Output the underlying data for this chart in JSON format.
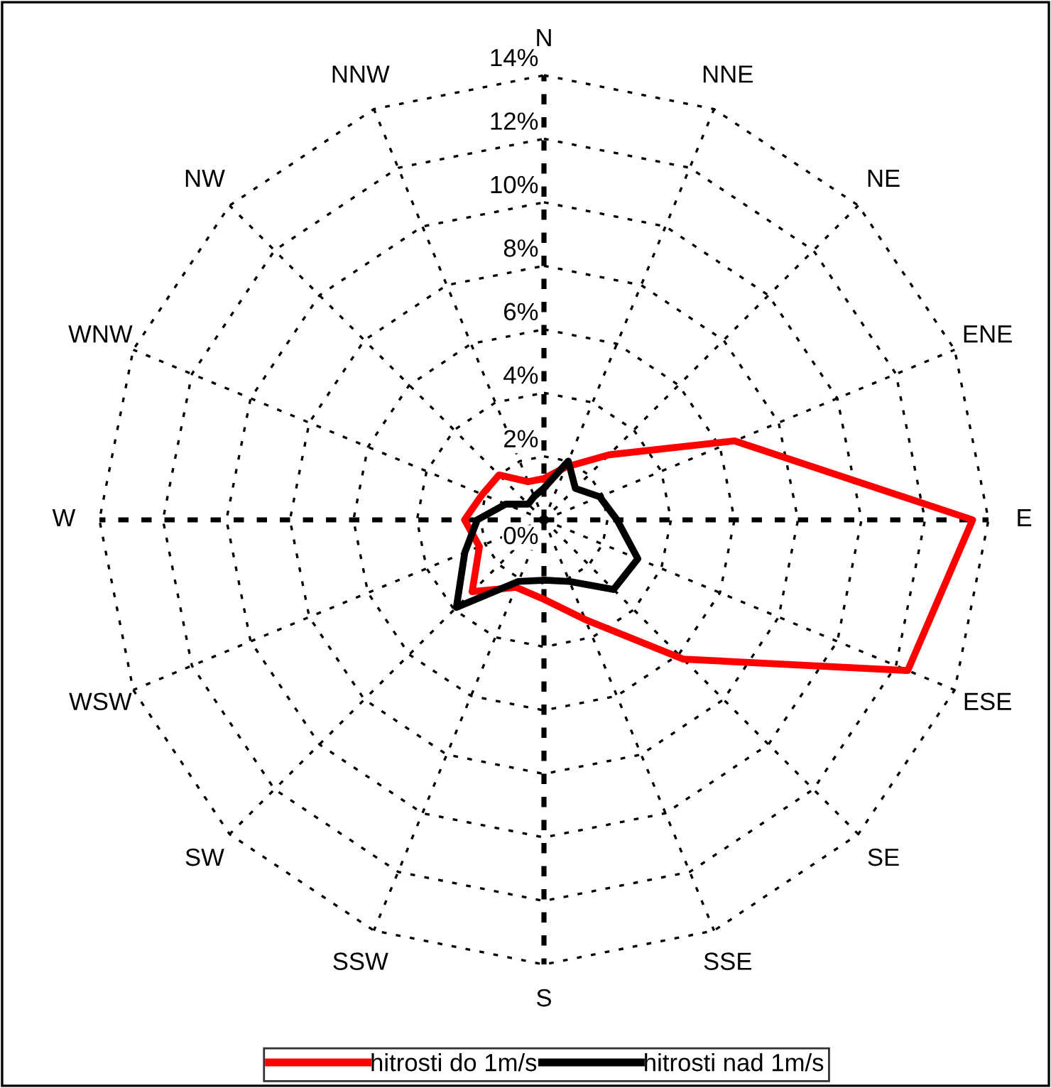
{
  "chart_data": {
    "type": "radar",
    "categories": [
      "N",
      "NNE",
      "NE",
      "ENE",
      "E",
      "ESE",
      "SE",
      "SSE",
      "S",
      "SSW",
      "SW",
      "WSW",
      "W",
      "WNW",
      "NW",
      "NNW"
    ],
    "ylim": [
      0,
      14
    ],
    "yticks": [
      {
        "value": 0,
        "label": "0%"
      },
      {
        "value": 2,
        "label": "2%"
      },
      {
        "value": 4,
        "label": "4%"
      },
      {
        "value": 6,
        "label": "6%"
      },
      {
        "value": 8,
        "label": "8%"
      },
      {
        "value": 10,
        "label": "10%"
      },
      {
        "value": 12,
        "label": "12%"
      },
      {
        "value": 14,
        "label": "14%"
      }
    ],
    "grid": true,
    "legend": "bottom",
    "line_style": "solid",
    "series": [
      {
        "name": "hitrosti do 1m/s",
        "color": "#ff0000",
        "values": [
          1.3,
          1.8,
          2.9,
          6.5,
          13.5,
          12.4,
          6.2,
          3.4,
          2.5,
          2.3,
          3.2,
          2.2,
          2.5,
          2.1,
          2.0,
          1.3
        ]
      },
      {
        "name": "hitrosti nad 1m/s",
        "color": "#000000",
        "values": [
          1.0,
          2.0,
          1.4,
          1.9,
          2.3,
          3.2,
          3.1,
          2.1,
          1.9,
          2.1,
          3.9,
          2.7,
          2.1,
          1.3,
          0.7,
          0.8
        ]
      }
    ]
  }
}
